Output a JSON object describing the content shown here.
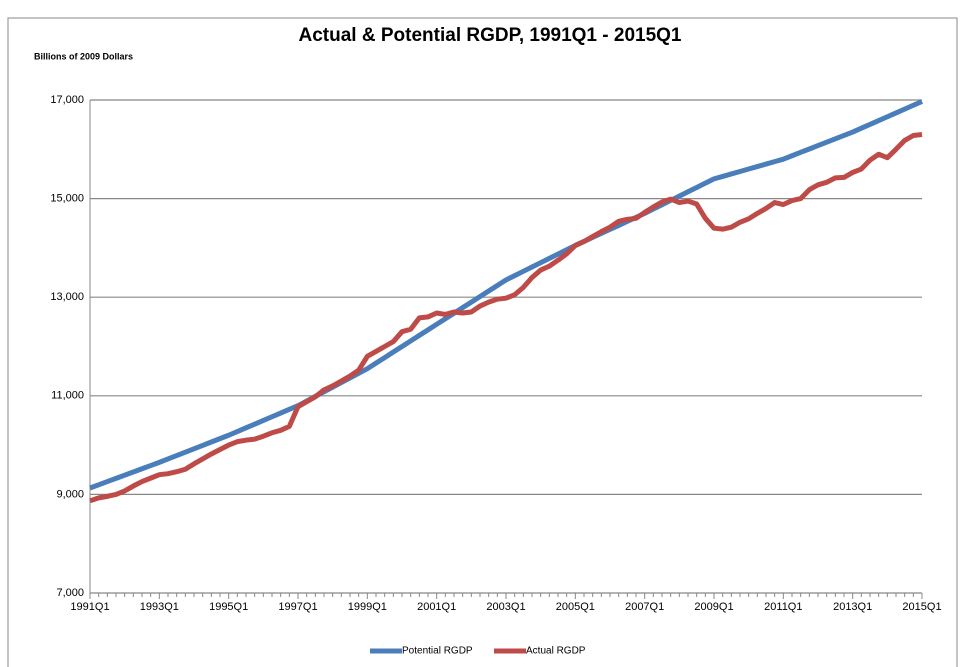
{
  "chart_data": {
    "type": "line",
    "title": "Actual & Potential RGDP, 1991Q1 - 2015Q1",
    "y_label": "Billions of 2009 Dollars",
    "categories": [
      "1991Q1",
      null,
      null,
      null,
      null,
      null,
      null,
      null,
      "1993Q1",
      null,
      null,
      null,
      null,
      null,
      null,
      null,
      "1995Q1",
      null,
      null,
      null,
      null,
      null,
      null,
      null,
      "1997Q1",
      null,
      null,
      null,
      null,
      null,
      null,
      null,
      "1999Q1",
      null,
      null,
      null,
      null,
      null,
      null,
      null,
      "2001Q1",
      null,
      null,
      null,
      null,
      null,
      null,
      null,
      "2003Q1",
      null,
      null,
      null,
      null,
      null,
      null,
      null,
      "2005Q1",
      null,
      null,
      null,
      null,
      null,
      null,
      null,
      "2007Q1",
      null,
      null,
      null,
      null,
      null,
      null,
      null,
      "2009Q1",
      null,
      null,
      null,
      null,
      null,
      null,
      null,
      "2011Q1",
      null,
      null,
      null,
      null,
      null,
      null,
      null,
      "2013Q1",
      null,
      null,
      null,
      null,
      null,
      null,
      null,
      "2015Q1"
    ],
    "series": [
      {
        "name": "Potential RGDP",
        "color": "#4a7ebb",
        "values": [
          9130,
          9195,
          9260,
          9325,
          9390,
          9455,
          9520,
          9585,
          9650,
          9719,
          9788,
          9856,
          9925,
          9994,
          10063,
          10131,
          10200,
          10275,
          10350,
          10425,
          10500,
          10575,
          10650,
          10725,
          10800,
          10894,
          10988,
          11081,
          11175,
          11269,
          11363,
          11456,
          11550,
          11663,
          11775,
          11888,
          12000,
          12113,
          12225,
          12338,
          12450,
          12563,
          12675,
          12788,
          12900,
          13013,
          13125,
          13238,
          13350,
          13438,
          13525,
          13613,
          13700,
          13788,
          13875,
          13963,
          14050,
          14131,
          14213,
          14294,
          14375,
          14456,
          14538,
          14619,
          14700,
          14788,
          14875,
          14963,
          15050,
          15138,
          15225,
          15313,
          15400,
          15450,
          15500,
          15550,
          15600,
          15650,
          15700,
          15750,
          15800,
          15869,
          15938,
          16006,
          16075,
          16144,
          16213,
          16281,
          16350,
          16428,
          16505,
          16583,
          16660,
          16738,
          16815,
          16893,
          16970
        ]
      },
      {
        "name": "Actual RGDP",
        "color": "#be4b48",
        "values": [
          8870,
          8930,
          8960,
          9000,
          9070,
          9170,
          9260,
          9330,
          9400,
          9420,
          9460,
          9510,
          9620,
          9720,
          9820,
          9910,
          10000,
          10070,
          10100,
          10120,
          10180,
          10250,
          10300,
          10380,
          10780,
          10880,
          10980,
          11120,
          11200,
          11300,
          11400,
          11520,
          11800,
          11900,
          12000,
          12100,
          12300,
          12350,
          12580,
          12600,
          12680,
          12650,
          12700,
          12680,
          12700,
          12820,
          12900,
          12960,
          12980,
          13050,
          13200,
          13400,
          13550,
          13630,
          13750,
          13880,
          14050,
          14130,
          14230,
          14330,
          14420,
          14540,
          14580,
          14600,
          14720,
          14830,
          14930,
          14990,
          14920,
          14950,
          14890,
          14600,
          14400,
          14380,
          14420,
          14520,
          14590,
          14700,
          14800,
          14920,
          14880,
          14960,
          15000,
          15180,
          15280,
          15330,
          15420,
          15430,
          15530,
          15600,
          15780,
          15900,
          15830,
          16000,
          16180,
          16280,
          16300
        ]
      }
    ],
    "ylim": [
      7000,
      17000
    ],
    "yticks": [
      {
        "value": 7000,
        "label": "7,000"
      },
      {
        "value": 9000,
        "label": "9,000"
      },
      {
        "value": 11000,
        "label": "11,000"
      },
      {
        "value": 13000,
        "label": "13,000"
      },
      {
        "value": 15000,
        "label": "15,000"
      },
      {
        "value": 17000,
        "label": "17,000"
      }
    ],
    "grid": true,
    "legend": "bottom"
  }
}
